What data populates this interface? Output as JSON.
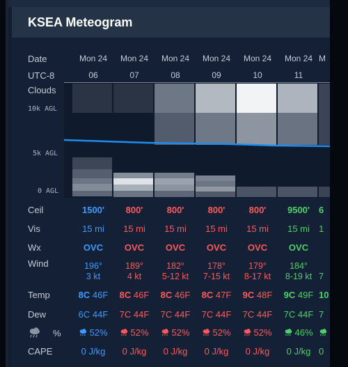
{
  "title": "KSEA Meteogram",
  "row_labels": {
    "date": "Date",
    "tz": "UTC-8",
    "clouds": "Clouds",
    "ceil": "Ceil",
    "vis": "Vis",
    "wx": "Wx",
    "wind": "Wind",
    "temp": "Temp",
    "dew": "Dew",
    "precip_pct": "%",
    "cape": "CAPE"
  },
  "altitude_labels": [
    "10k AGL",
    "5k AGL",
    "0 AGL"
  ],
  "columns": [
    {
      "date": "Mon 24",
      "hour": "06",
      "ceil": "1500'",
      "vis": "15 mi",
      "wx": "OVC",
      "wind_dir": "196°",
      "wind_speed": "3 kt",
      "temp_c": "8C",
      "temp_f": "46F",
      "dew_c": "6C",
      "dew_f": "44F",
      "precip": "52%",
      "cape": "0 J/kg",
      "category": "blue"
    },
    {
      "date": "Mon 24",
      "hour": "07",
      "ceil": "800'",
      "vis": "15 mi",
      "wx": "OVC",
      "wind_dir": "189°",
      "wind_speed": "4 kt",
      "temp_c": "8C",
      "temp_f": "46F",
      "dew_c": "7C",
      "dew_f": "44F",
      "precip": "52%",
      "cape": "0 J/kg",
      "category": "red"
    },
    {
      "date": "Mon 24",
      "hour": "08",
      "ceil": "800'",
      "vis": "15 mi",
      "wx": "OVC",
      "wind_dir": "182°",
      "wind_speed": "5-12 kt",
      "temp_c": "8C",
      "temp_f": "46F",
      "dew_c": "7C",
      "dew_f": "44F",
      "precip": "52%",
      "cape": "0 J/kg",
      "category": "red"
    },
    {
      "date": "Mon 24",
      "hour": "09",
      "ceil": "800'",
      "vis": "15 mi",
      "wx": "OVC",
      "wind_dir": "178°",
      "wind_speed": "7-15 kt",
      "temp_c": "8C",
      "temp_f": "47F",
      "dew_c": "7C",
      "dew_f": "44F",
      "precip": "52%",
      "cape": "0 J/kg",
      "category": "red"
    },
    {
      "date": "Mon 24",
      "hour": "10",
      "ceil": "800'",
      "vis": "15 mi",
      "wx": "OVC",
      "wind_dir": "179°",
      "wind_speed": "8-17 kt",
      "temp_c": "9C",
      "temp_f": "48F",
      "dew_c": "7C",
      "dew_f": "44F",
      "precip": "52%",
      "cape": "0 J/kg",
      "category": "red"
    },
    {
      "date": "Mon 24",
      "hour": "11",
      "ceil": "9500'",
      "vis": "15 mi",
      "wx": "OVC",
      "wind_dir": "184°",
      "wind_speed": "8-19 kt",
      "temp_c": "9C",
      "temp_f": "49F",
      "dew_c": "7C",
      "dew_f": "44F",
      "precip": "46%",
      "cape": "0 J/kg",
      "category": "green"
    }
  ],
  "partial_column": {
    "date": "M",
    "ceil": "6",
    "vis": "1",
    "wind_speed": "7",
    "temp_c": "10",
    "dew_c": "7",
    "cape": "0"
  },
  "colors": {
    "blue": "#3f9bff",
    "red": "#ff5a5a",
    "green": "#4fd06b",
    "line": "#1f8cf0"
  }
}
